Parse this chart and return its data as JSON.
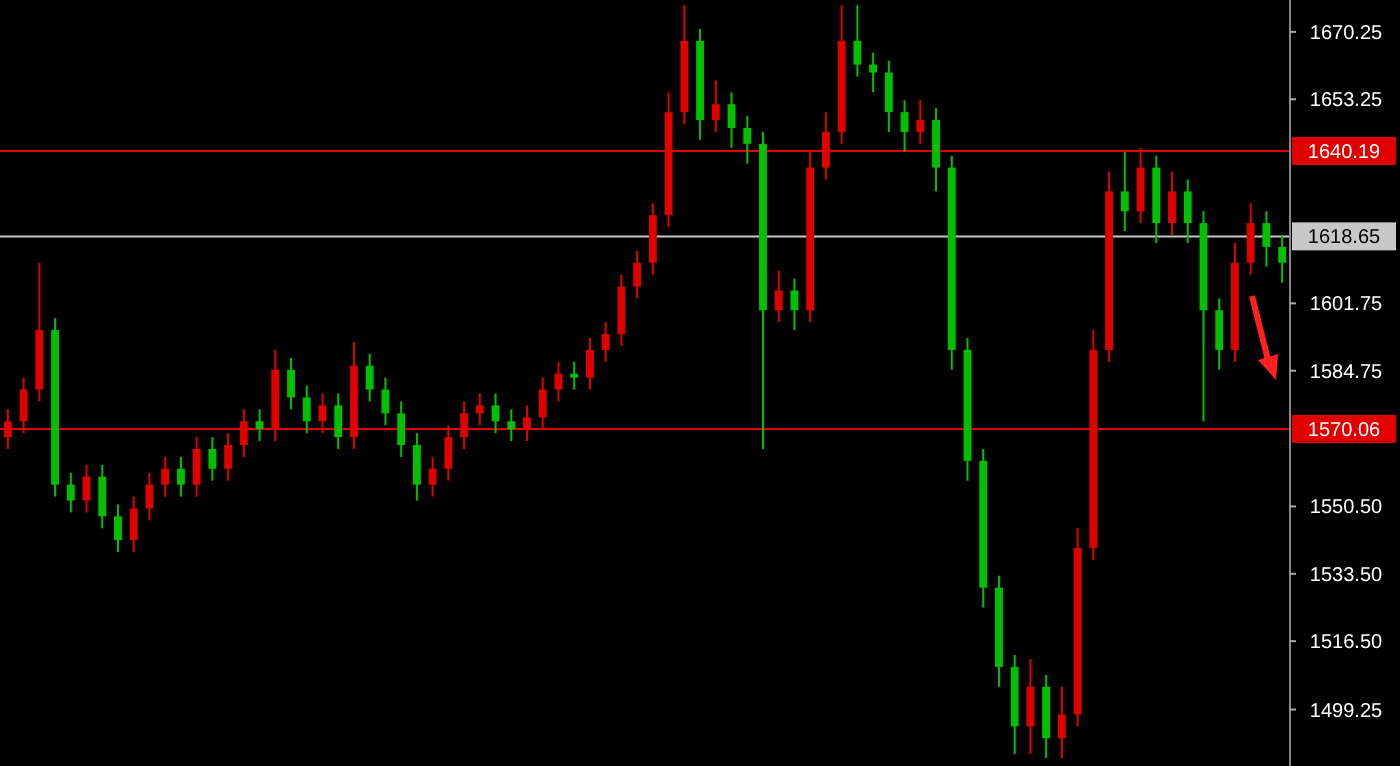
{
  "chart_data": {
    "type": "candlestick",
    "tick_labels": "y",
    "ylim": [
      1485,
      1678.3
    ],
    "yticks": [
      1670.25,
      1653.25,
      1601.75,
      1584.75,
      {
        "value": 1550.5,
        "label": "1550.50"
      },
      {
        "value": 1533.5,
        "label": "1533.50"
      },
      {
        "value": 1516.5,
        "label": "1516.50"
      },
      1499.25
    ],
    "categories": [
      null,
      null,
      null,
      null,
      null,
      null,
      null,
      null,
      null,
      null,
      null,
      null,
      null,
      null,
      null,
      null,
      null,
      null,
      null,
      null,
      null,
      null,
      null,
      null,
      null,
      null,
      null,
      null,
      null,
      null,
      null,
      null,
      null,
      null,
      null,
      null,
      null,
      null,
      null,
      null,
      null,
      null,
      null,
      null,
      null,
      null,
      null,
      null,
      null,
      null,
      null,
      null,
      null,
      null,
      null,
      null,
      null,
      null,
      null,
      null,
      null,
      null,
      null,
      null,
      null,
      null,
      null,
      null,
      null,
      null,
      null,
      null,
      null,
      null,
      null,
      null,
      null,
      null,
      null,
      null,
      null,
      null
    ],
    "ohlc": [
      [
        1568,
        1575,
        1565,
        1572
      ],
      [
        1572,
        1583,
        1569,
        1580
      ],
      [
        1580,
        1612,
        1577,
        1595
      ],
      [
        1595,
        1598,
        1553,
        1556
      ],
      [
        1556,
        1559,
        1549,
        1552
      ],
      [
        1552,
        1561,
        1549,
        1558
      ],
      [
        1558,
        1561,
        1545,
        1548
      ],
      [
        1548,
        1551,
        1539,
        1542
      ],
      [
        1542,
        1553,
        1539,
        1550
      ],
      [
        1550,
        1559,
        1547,
        1556
      ],
      [
        1556,
        1563,
        1553,
        1560
      ],
      [
        1560,
        1563,
        1553,
        1556
      ],
      [
        1556,
        1568,
        1553,
        1565
      ],
      [
        1565,
        1568,
        1557,
        1560
      ],
      [
        1560,
        1569,
        1557,
        1566
      ],
      [
        1566,
        1575,
        1563,
        1572
      ],
      [
        1572,
        1575,
        1567,
        1570
      ],
      [
        1570,
        1590,
        1567,
        1585
      ],
      [
        1585,
        1588,
        1575,
        1578
      ],
      [
        1578,
        1581,
        1569,
        1572
      ],
      [
        1572,
        1579,
        1569,
        1576
      ],
      [
        1576,
        1579,
        1565,
        1568
      ],
      [
        1568,
        1592,
        1565,
        1586
      ],
      [
        1586,
        1589,
        1577,
        1580
      ],
      [
        1580,
        1583,
        1571,
        1574
      ],
      [
        1574,
        1577,
        1563,
        1566
      ],
      [
        1566,
        1569,
        1552,
        1556
      ],
      [
        1556,
        1563,
        1553,
        1560
      ],
      [
        1560,
        1571,
        1557,
        1568
      ],
      [
        1568,
        1577,
        1565,
        1574
      ],
      [
        1574,
        1579,
        1571,
        1576
      ],
      [
        1576,
        1579,
        1569,
        1572
      ],
      [
        1572,
        1575,
        1567,
        1570
      ],
      [
        1570,
        1576,
        1567,
        1573
      ],
      [
        1573,
        1583,
        1570,
        1580
      ],
      [
        1580,
        1587,
        1577,
        1584
      ],
      [
        1584,
        1587,
        1580,
        1583
      ],
      [
        1583,
        1593,
        1580,
        1590
      ],
      [
        1590,
        1597,
        1587,
        1594
      ],
      [
        1594,
        1609,
        1591,
        1606
      ],
      [
        1606,
        1615,
        1603,
        1612
      ],
      [
        1612,
        1627,
        1609,
        1624
      ],
      [
        1624,
        1655,
        1621,
        1650
      ],
      [
        1650,
        1677,
        1647,
        1668
      ],
      [
        1668,
        1671,
        1643,
        1648
      ],
      [
        1648,
        1658,
        1645,
        1652
      ],
      [
        1652,
        1655,
        1641,
        1646
      ],
      [
        1646,
        1649,
        1637,
        1642
      ],
      [
        1642,
        1645,
        1565,
        1600
      ],
      [
        1600,
        1610,
        1597,
        1605
      ],
      [
        1605,
        1608,
        1595,
        1600
      ],
      [
        1600,
        1640,
        1597,
        1636
      ],
      [
        1636,
        1650,
        1633,
        1645
      ],
      [
        1645,
        1677,
        1642,
        1668
      ],
      [
        1668,
        1677,
        1659,
        1662
      ],
      [
        1662,
        1665,
        1655,
        1660
      ],
      [
        1660,
        1663,
        1645,
        1650
      ],
      [
        1650,
        1653,
        1640,
        1645
      ],
      [
        1645,
        1653,
        1642,
        1648
      ],
      [
        1648,
        1651,
        1630,
        1636
      ],
      [
        1636,
        1639,
        1585,
        1590
      ],
      [
        1590,
        1593,
        1557,
        1562
      ],
      [
        1562,
        1565,
        1525,
        1530
      ],
      [
        1530,
        1533,
        1505,
        1510
      ],
      [
        1510,
        1513,
        1488,
        1495
      ],
      [
        1495,
        1512,
        1488,
        1505
      ],
      [
        1505,
        1508,
        1487,
        1492
      ],
      [
        1492,
        1505,
        1487,
        1498
      ],
      [
        1498,
        1545,
        1495,
        1540
      ],
      [
        1540,
        1595,
        1537,
        1590
      ],
      [
        1590,
        1635,
        1587,
        1630
      ],
      [
        1630,
        1640,
        1620,
        1625
      ],
      [
        1625,
        1641,
        1622,
        1636
      ],
      [
        1636,
        1639,
        1617,
        1622
      ],
      [
        1622,
        1635,
        1619,
        1630
      ],
      [
        1630,
        1633,
        1617,
        1622
      ],
      [
        1622,
        1625,
        1572,
        1600
      ],
      [
        1600,
        1603,
        1585,
        1590
      ],
      [
        1590,
        1617,
        1587,
        1612
      ],
      [
        1612,
        1627,
        1609,
        1622
      ],
      [
        1622,
        1625,
        1611,
        1616
      ],
      [
        1616,
        1619,
        1607,
        1612
      ]
    ],
    "colors": [
      "#e00000",
      "#e00000",
      "#e00000",
      "#00c000",
      "#00c000",
      "#e00000",
      "#00c000",
      "#00c000",
      "#e00000",
      "#e00000",
      "#e00000",
      "#00c000",
      "#e00000",
      "#00c000",
      "#e00000",
      "#e00000",
      "#00c000",
      "#e00000",
      "#00c000",
      "#00c000",
      "#e00000",
      "#00c000",
      "#e00000",
      "#00c000",
      "#00c000",
      "#00c000",
      "#00c000",
      "#e00000",
      "#e00000",
      "#e00000",
      "#e00000",
      "#00c000",
      "#00c000",
      "#e00000",
      "#e00000",
      "#e00000",
      "#00c000",
      "#e00000",
      "#e00000",
      "#e00000",
      "#e00000",
      "#e00000",
      "#e00000",
      "#e00000",
      "#00c000",
      "#e00000",
      "#00c000",
      "#00c000",
      "#00c000",
      "#e00000",
      "#00c000",
      "#e00000",
      "#e00000",
      "#e00000",
      "#00c000",
      "#00c000",
      "#00c000",
      "#00c000",
      "#e00000",
      "#00c000",
      "#00c000",
      "#00c000",
      "#00c000",
      "#00c000",
      "#00c000",
      "#e00000",
      "#00c000",
      "#e00000",
      "#e00000",
      "#e00000",
      "#e00000",
      "#00c000",
      "#e00000",
      "#00c000",
      "#e00000",
      "#00c000",
      "#00c000",
      "#00c000",
      "#e00000",
      "#e00000",
      "#00c000",
      "#00c000"
    ],
    "ref_lines": [
      {
        "axis": "y",
        "value": 1640.19,
        "label": "1640.19",
        "color": "#e00000"
      },
      {
        "axis": "y",
        "value": 1618.65,
        "label": "1618.65",
        "color": "#c8c8c8"
      },
      {
        "axis": "y",
        "value": 1570.06,
        "label": "1570.06",
        "color": "#e00000"
      }
    ]
  }
}
